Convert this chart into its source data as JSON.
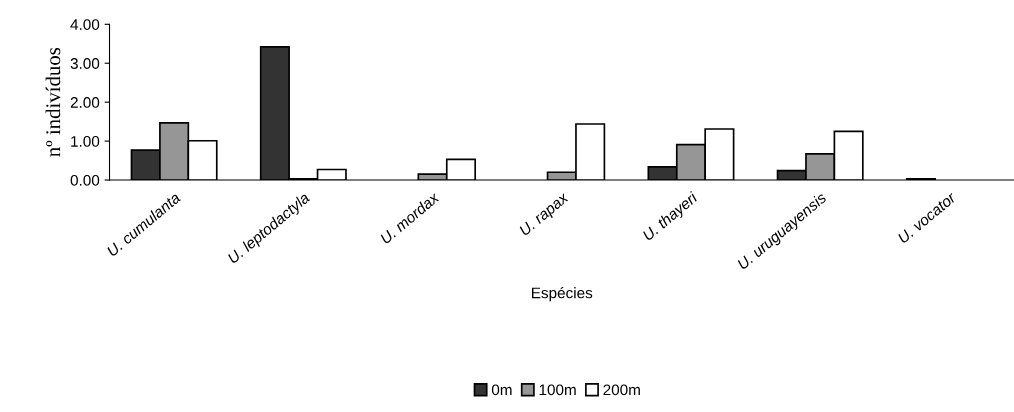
{
  "chart_data": {
    "type": "bar",
    "xlabel": "Espécies",
    "ylabel": "nº indivíduos",
    "categories": [
      "U. cumulanta",
      "U. leptodactyla",
      "U. mordax",
      "U. rapax",
      "U. thayeri",
      "U. uruguayensis",
      "U. vocator"
    ],
    "series": [
      {
        "name": "0m",
        "color": "#333333",
        "values": [
          0.77,
          3.42,
          0,
          0,
          0.34,
          0.24,
          0.03
        ]
      },
      {
        "name": "100m",
        "color": "#969696",
        "values": [
          1.47,
          0.03,
          0.15,
          0.2,
          0.91,
          0.67,
          0
        ]
      },
      {
        "name": "200m",
        "color": "#ffffff",
        "values": [
          1.01,
          0.27,
          0.53,
          1.44,
          1.31,
          1.25,
          0
        ]
      }
    ],
    "ylim": [
      0,
      4
    ],
    "yticks": [
      {
        "value": 0,
        "label": "0.00"
      },
      {
        "value": 1,
        "label": "1.00"
      },
      {
        "value": 2,
        "label": "2.00"
      },
      {
        "value": 3,
        "label": "3.00"
      },
      {
        "value": 4,
        "label": "4.00"
      }
    ],
    "grid": false,
    "legend": "bottom"
  }
}
